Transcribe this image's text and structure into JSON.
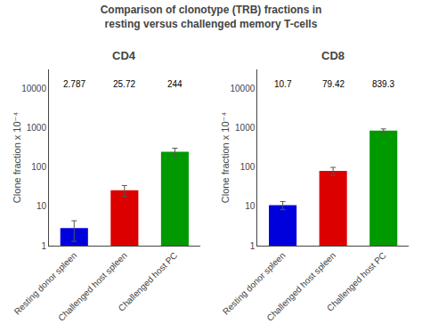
{
  "title": "Comparison of clonotype (TRB) fractions in\nresting versus challenged memory T-cells",
  "chart_data": [
    {
      "type": "bar",
      "title": "CD4",
      "categories": [
        "Resting donor spleen",
        "Challenged host spleen",
        "Challenged host PC"
      ],
      "values": [
        2.787,
        25.72,
        244
      ],
      "errors": [
        1.5,
        8.0,
        55.0
      ],
      "colors": [
        "#0000dd",
        "#dd0000",
        "#009900"
      ],
      "ylabel": "Clone fraction x 10⁻⁴",
      "log": "y",
      "ylim": [
        1,
        30000
      ],
      "yticks": [
        1,
        10,
        100,
        1000,
        10000
      ],
      "data_labels": true,
      "grid": false
    },
    {
      "type": "bar",
      "title": "CD8",
      "categories": [
        "Resting donor spleen",
        "Challenged host spleen",
        "Challenged host PC"
      ],
      "values": [
        10.7,
        79.42,
        839.3
      ],
      "errors": [
        2.5,
        18.0,
        85.0
      ],
      "colors": [
        "#0000dd",
        "#dd0000",
        "#009900"
      ],
      "ylabel": "Clone fraction x 10⁻⁴",
      "log": "y",
      "ylim": [
        1,
        30000
      ],
      "yticks": [
        1,
        10,
        100,
        1000,
        10000
      ],
      "data_labels": true,
      "grid": false
    }
  ]
}
